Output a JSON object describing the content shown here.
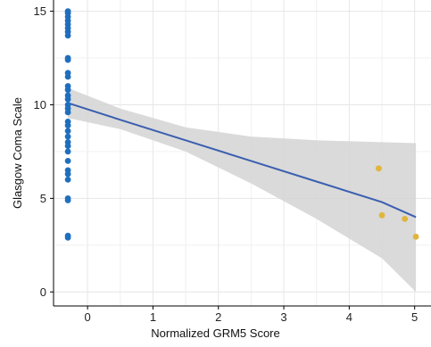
{
  "chart_data": {
    "type": "scatter",
    "xlabel": "Normalized GRM5 Score",
    "ylabel": "Glasgow Coma Scale",
    "xlim": [
      -0.52,
      5.25
    ],
    "ylim": [
      -0.75,
      15.6
    ],
    "x_ticks": [
      0,
      1,
      2,
      3,
      4,
      5
    ],
    "y_ticks": [
      0,
      5,
      10,
      15
    ],
    "grid": true,
    "series": [
      {
        "color": "#1f6fbf",
        "points": [
          {
            "x": -0.3,
            "y": 15
          },
          {
            "x": -0.3,
            "y": 14.9
          },
          {
            "x": -0.3,
            "y": 14.7
          },
          {
            "x": -0.3,
            "y": 14.5
          },
          {
            "x": -0.3,
            "y": 14.3
          },
          {
            "x": -0.3,
            "y": 14.1
          },
          {
            "x": -0.3,
            "y": 13.9
          },
          {
            "x": -0.3,
            "y": 13.7
          },
          {
            "x": -0.3,
            "y": 12.5
          },
          {
            "x": -0.3,
            "y": 12.4
          },
          {
            "x": -0.3,
            "y": 11.7
          },
          {
            "x": -0.3,
            "y": 11.5
          },
          {
            "x": -0.3,
            "y": 11.0
          },
          {
            "x": -0.3,
            "y": 10.8
          },
          {
            "x": -0.3,
            "y": 10.5
          },
          {
            "x": -0.3,
            "y": 10.3
          },
          {
            "x": -0.3,
            "y": 10.0
          },
          {
            "x": -0.3,
            "y": 9.8
          },
          {
            "x": -0.3,
            "y": 9.6
          },
          {
            "x": -0.3,
            "y": 9.1
          },
          {
            "x": -0.3,
            "y": 8.9
          },
          {
            "x": -0.3,
            "y": 8.6
          },
          {
            "x": -0.3,
            "y": 8.3
          },
          {
            "x": -0.3,
            "y": 8.0
          },
          {
            "x": -0.3,
            "y": 7.8
          },
          {
            "x": -0.3,
            "y": 7.5
          },
          {
            "x": -0.3,
            "y": 7.0
          },
          {
            "x": -0.3,
            "y": 6.5
          },
          {
            "x": -0.3,
            "y": 6.3
          },
          {
            "x": -0.3,
            "y": 6.0
          },
          {
            "x": -0.3,
            "y": 5.0
          },
          {
            "x": -0.3,
            "y": 4.9
          },
          {
            "x": -0.3,
            "y": 3.0
          },
          {
            "x": -0.3,
            "y": 2.9
          }
        ]
      },
      {
        "color": "#e0b53a",
        "points": [
          {
            "x": 4.45,
            "y": 6.6
          },
          {
            "x": 4.5,
            "y": 4.1
          },
          {
            "x": 4.85,
            "y": 3.9
          },
          {
            "x": 5.02,
            "y": 2.95
          }
        ]
      }
    ],
    "regression": {
      "color": "#3b5fb0",
      "band_color": "#d3d3d3",
      "x": [
        -0.3,
        0.5,
        1.5,
        2.5,
        3.5,
        4.5,
        5.02
      ],
      "y": [
        10.1,
        9.2,
        8.1,
        7.0,
        5.9,
        4.8,
        4.0
      ],
      "lower": [
        9.3,
        8.7,
        7.5,
        5.8,
        3.9,
        1.8,
        0.0
      ],
      "upper": [
        10.9,
        9.8,
        8.8,
        8.3,
        8.1,
        8.0,
        7.95
      ]
    }
  }
}
